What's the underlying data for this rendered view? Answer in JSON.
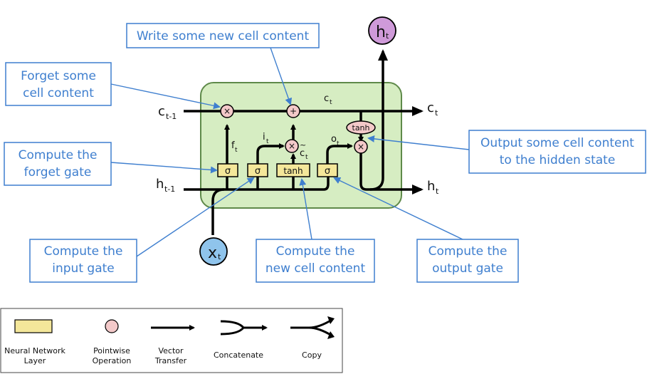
{
  "colors": {
    "callout_blue": "#3f7fcf",
    "cell_fill": "#d6edc2",
    "cell_stroke": "#5f8a4a",
    "layer_fill": "#f4e79a",
    "pointwise_fill": "#f3c9c9",
    "h_output_fill": "#cf9ad9",
    "x_input_fill": "#8fc4ec"
  },
  "callouts": {
    "write": "Write some new cell content",
    "forget_1": "Forget some",
    "forget_2": "cell content",
    "forget_gate_1": "Compute the",
    "forget_gate_2": "forget gate",
    "output_1": "Output some cell content",
    "output_2": "to the hidden state",
    "input_gate_1": "Compute the",
    "input_gate_2": "input gate",
    "new_content_1": "Compute the",
    "new_content_2": "new cell content",
    "output_gate_1": "Compute the",
    "output_gate_2": "output gate"
  },
  "cell": {
    "sigma": "σ",
    "tanh": "tanh",
    "times": "×",
    "plus": "+",
    "c_prev": "c",
    "c_prev_sub": "t-1",
    "h_prev": "h",
    "h_prev_sub": "t-1",
    "c_out": "c",
    "c_out_sub": "t",
    "h_out": "h",
    "h_out_sub": "t",
    "c_inner": "c",
    "c_inner_sub": "t",
    "f": "f",
    "f_sub": "t",
    "i": "i",
    "i_sub": "t",
    "c_tilde": "c",
    "c_tilde_mark": "~",
    "c_tilde_sub": "t",
    "o": "o",
    "o_sub": "t",
    "x": "x",
    "x_sub": "t",
    "h_top": "h",
    "h_top_sub": "t"
  },
  "legend": {
    "layer_1": "Neural Network",
    "layer_2": "Layer",
    "pointwise_1": "Pointwise",
    "pointwise_2": "Operation",
    "vector_1": "Vector",
    "vector_2": "Transfer",
    "concat": "Concatenate",
    "copy": "Copy"
  }
}
